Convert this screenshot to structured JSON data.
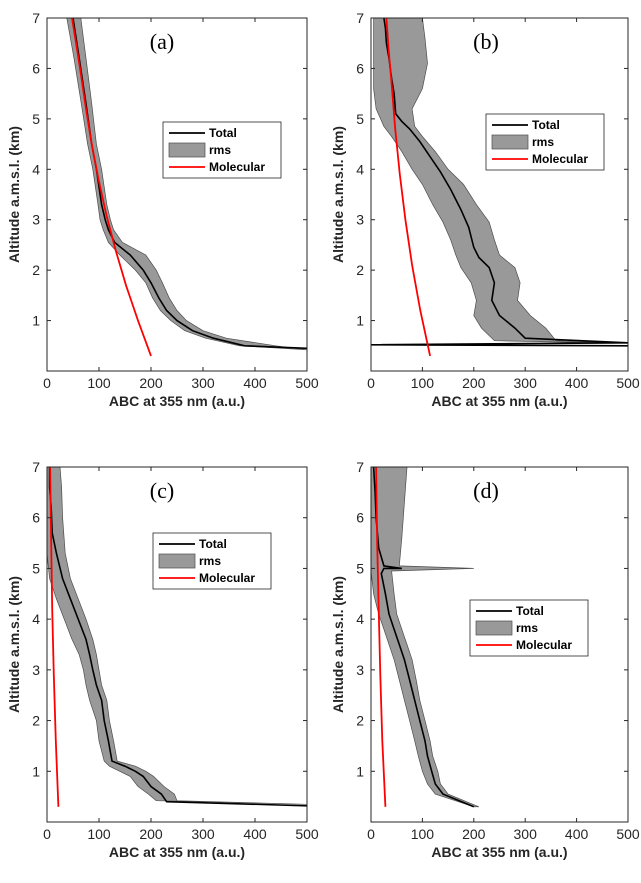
{
  "colors": {
    "total": "#000000",
    "rms_fill": "#999999",
    "rms_edge": "#4d4d4d",
    "molecular": "#ff0000"
  },
  "chart_data": [
    {
      "type": "line",
      "panel_label": "(a)",
      "xlabel": "ABC at 355 nm (a.u.)",
      "ylabel": "Altitude a.m.s.l. (km)",
      "xlim": [
        0,
        500
      ],
      "ylim": [
        0,
        7
      ],
      "xticks": [
        0,
        100,
        200,
        300,
        400,
        500
      ],
      "yticks": [
        1,
        2,
        3,
        4,
        5,
        6,
        7
      ],
      "legend": {
        "placement": "middle-right",
        "entries": [
          "Total",
          "rms",
          "Molecular"
        ]
      },
      "series": [
        {
          "name": "Total",
          "x": [
            500,
            380,
            320,
            280,
            250,
            230,
            215,
            200,
            185,
            160,
            130,
            118,
            112,
            105,
            95,
            86,
            75,
            62,
            50
          ],
          "y": [
            0.45,
            0.5,
            0.65,
            0.8,
            1.0,
            1.2,
            1.45,
            1.75,
            2.0,
            2.3,
            2.55,
            2.8,
            3.0,
            3.3,
            4.0,
            4.5,
            5.3,
            6.2,
            7.0
          ]
        },
        {
          "name": "rms",
          "x_low": [
            500,
            370,
            305,
            265,
            238,
            218,
            203,
            190,
            170,
            140,
            118,
            108,
            102,
            98,
            88,
            78,
            66,
            52,
            38
          ],
          "x_high": [
            500,
            440,
            345,
            300,
            268,
            250,
            235,
            222,
            210,
            190,
            145,
            128,
            122,
            115,
            105,
            95,
            86,
            75,
            65
          ],
          "y": [
            0.42,
            0.5,
            0.65,
            0.8,
            1.0,
            1.2,
            1.45,
            1.75,
            2.0,
            2.3,
            2.55,
            2.8,
            3.0,
            3.3,
            4.0,
            4.5,
            5.3,
            6.2,
            7.0
          ]
        },
        {
          "name": "Molecular",
          "x": [
            200,
            175,
            152,
            132,
            114,
            99,
            86,
            75,
            65,
            56,
            48
          ],
          "y": [
            0.3,
            1.0,
            1.7,
            2.4,
            3.1,
            3.8,
            4.5,
            5.2,
            5.9,
            6.5,
            7.0
          ]
        }
      ]
    },
    {
      "type": "line",
      "panel_label": "(b)",
      "xlabel": "ABC at 355 nm (a.u.)",
      "ylabel": "Altitude a.m.s.l. (km)",
      "xlim": [
        0,
        500
      ],
      "ylim": [
        0,
        7
      ],
      "xticks": [
        0,
        100,
        200,
        300,
        400,
        500
      ],
      "yticks": [
        1,
        2,
        3,
        4,
        5,
        6,
        7
      ],
      "legend": {
        "placement": "upper-right",
        "entries": [
          "Total",
          "rms",
          "Molecular"
        ]
      },
      "series": [
        {
          "name": "Total",
          "x": [
            500,
            0,
            500,
            300,
            280,
            250,
            235,
            240,
            230,
            210,
            200,
            190,
            175,
            155,
            135,
            115,
            95,
            75,
            60,
            48,
            45,
            40,
            35,
            30,
            28,
            25
          ],
          "y": [
            0.5,
            0.52,
            0.56,
            0.65,
            0.85,
            1.1,
            1.4,
            1.75,
            2.05,
            2.25,
            2.45,
            2.85,
            3.2,
            3.6,
            3.95,
            4.25,
            4.55,
            4.8,
            4.95,
            5.1,
            5.5,
            5.8,
            6.2,
            6.5,
            6.8,
            7.0
          ]
        },
        {
          "name": "rms",
          "x_low": [
            500,
            240,
            215,
            200,
            205,
            195,
            175,
            165,
            155,
            140,
            120,
            100,
            80,
            60,
            40,
            25,
            10,
            5,
            5,
            5,
            5
          ],
          "x_high": [
            500,
            360,
            340,
            310,
            285,
            290,
            280,
            250,
            240,
            230,
            205,
            180,
            150,
            125,
            100,
            85,
            80,
            100,
            110,
            105,
            100
          ],
          "y": [
            0.55,
            0.6,
            0.85,
            1.1,
            1.4,
            1.75,
            2.05,
            2.3,
            2.6,
            2.95,
            3.3,
            3.7,
            4.0,
            4.35,
            4.65,
            4.85,
            5.2,
            5.6,
            6.1,
            6.6,
            7.0
          ]
        },
        {
          "name": "Molecular",
          "x": [
            115,
            96,
            80,
            67,
            56,
            47,
            40,
            34,
            30
          ],
          "y": [
            0.3,
            1.2,
            2.1,
            3.0,
            3.9,
            4.8,
            5.7,
            6.4,
            7.0
          ]
        }
      ]
    },
    {
      "type": "line",
      "panel_label": "(c)",
      "xlabel": "ABC at 355 nm (a.u.)",
      "ylabel": "Altitude a.m.s.l. (km)",
      "xlim": [
        0,
        500
      ],
      "ylim": [
        0,
        7
      ],
      "xticks": [
        0,
        100,
        200,
        300,
        400,
        500
      ],
      "yticks": [
        1,
        2,
        3,
        4,
        5,
        6,
        7
      ],
      "legend": {
        "placement": "upper-right",
        "entries": [
          "Total",
          "rms",
          "Molecular"
        ]
      },
      "series": [
        {
          "name": "Total",
          "x": [
            500,
            230,
            220,
            200,
            185,
            170,
            150,
            125,
            118,
            110,
            105,
            95,
            88,
            82,
            75,
            60,
            45,
            30,
            18,
            10,
            8,
            5,
            5
          ],
          "y": [
            0.32,
            0.4,
            0.55,
            0.7,
            0.9,
            1.0,
            1.1,
            1.2,
            1.6,
            2.0,
            2.4,
            2.7,
            3.0,
            3.3,
            3.6,
            4.0,
            4.4,
            4.8,
            5.3,
            5.7,
            6.2,
            6.6,
            7.0
          ]
        },
        {
          "name": "rms",
          "x_low": [
            500,
            210,
            195,
            175,
            160,
            140,
            120,
            110,
            100,
            95,
            82,
            75,
            70,
            62,
            48,
            33,
            18,
            5,
            0,
            0,
            0,
            0
          ],
          "x_high": [
            500,
            250,
            245,
            225,
            205,
            190,
            170,
            135,
            128,
            120,
            115,
            105,
            100,
            95,
            88,
            75,
            60,
            45,
            35,
            30,
            28,
            25
          ],
          "y": [
            0.35,
            0.42,
            0.55,
            0.7,
            0.9,
            1.0,
            1.1,
            1.2,
            1.6,
            2.0,
            2.4,
            2.7,
            3.0,
            3.3,
            3.6,
            4.0,
            4.4,
            4.8,
            5.3,
            6.0,
            6.6,
            7.0
          ]
        },
        {
          "name": "Molecular",
          "x": [
            22,
            17,
            13,
            10,
            8,
            6
          ],
          "y": [
            0.3,
            1.6,
            2.9,
            4.2,
            5.5,
            7.0
          ]
        }
      ]
    },
    {
      "type": "line",
      "panel_label": "(d)",
      "xlabel": "ABC at 355 nm (a.u.)",
      "ylabel": "Altitude a.m.s.l. (km)",
      "xlim": [
        0,
        500
      ],
      "ylim": [
        0,
        7
      ],
      "xticks": [
        0,
        100,
        200,
        300,
        400,
        500
      ],
      "yticks": [
        1,
        2,
        3,
        4,
        5,
        6,
        7
      ],
      "legend": {
        "placement": "middle-right",
        "entries": [
          "Total",
          "rms",
          "Molecular"
        ]
      },
      "series": [
        {
          "name": "Total",
          "x": [
            200,
            140,
            125,
            118,
            110,
            105,
            95,
            85,
            75,
            65,
            55,
            45,
            35,
            28,
            20,
            25,
            60,
            25,
            15,
            10,
            8,
            5
          ],
          "y": [
            0.3,
            0.55,
            0.75,
            1.0,
            1.3,
            1.6,
            2.0,
            2.4,
            2.8,
            3.2,
            3.5,
            3.8,
            4.1,
            4.5,
            4.9,
            5.0,
            5.0,
            5.05,
            5.4,
            6.0,
            6.5,
            7.0
          ]
        },
        {
          "name": "rms",
          "x_low": [
            200,
            125,
            110,
            100,
            92,
            85,
            75,
            65,
            55,
            45,
            35,
            25,
            15,
            5,
            0,
            0,
            0,
            0,
            0,
            0
          ],
          "x_high": [
            210,
            150,
            135,
            130,
            120,
            115,
            105,
            95,
            88,
            80,
            70,
            60,
            50,
            45,
            40,
            200,
            55,
            60,
            65,
            70
          ],
          "y": [
            0.3,
            0.55,
            0.75,
            1.0,
            1.3,
            1.6,
            2.0,
            2.4,
            2.8,
            3.2,
            3.5,
            3.8,
            4.1,
            4.5,
            4.95,
            5.0,
            5.05,
            5.6,
            6.3,
            7.0
          ]
        },
        {
          "name": "Molecular",
          "x": [
            28,
            22,
            18,
            15,
            12,
            10
          ],
          "y": [
            0.3,
            1.6,
            2.9,
            4.2,
            5.5,
            7.0
          ]
        }
      ]
    }
  ]
}
